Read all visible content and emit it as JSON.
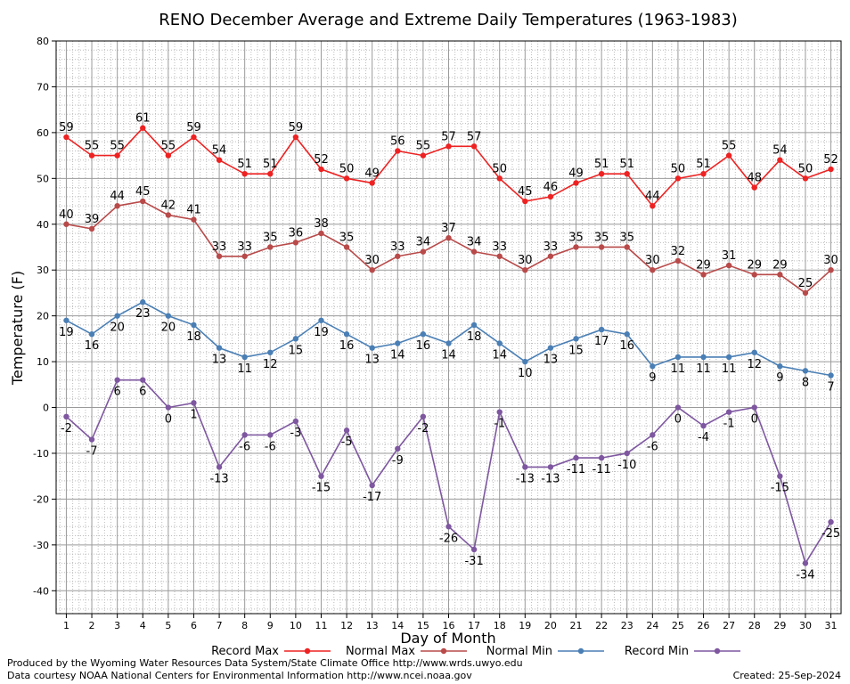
{
  "chart_data": {
    "type": "line",
    "title": "RENO December Average and Extreme Daily Temperatures (1963-1983)",
    "xlabel": "Day of Month",
    "ylabel": "Temperature (F)",
    "x": [
      1,
      2,
      3,
      4,
      5,
      6,
      7,
      8,
      9,
      10,
      11,
      12,
      13,
      14,
      15,
      16,
      17,
      18,
      19,
      20,
      21,
      22,
      23,
      24,
      25,
      26,
      27,
      28,
      29,
      30,
      31
    ],
    "xlim": [
      0.6,
      31.4
    ],
    "ylim": [
      -45,
      80
    ],
    "yticks": [
      -40,
      -30,
      -20,
      -10,
      0,
      10,
      20,
      30,
      40,
      50,
      60,
      70,
      80
    ],
    "grid": true,
    "legend_placement": "bottom",
    "series": [
      {
        "name": "Record Max",
        "color": "#ee2222",
        "label_pos": "above",
        "values": [
          59,
          55,
          55,
          61,
          55,
          59,
          54,
          51,
          51,
          59,
          52,
          50,
          49,
          56,
          55,
          57,
          57,
          50,
          45,
          46,
          49,
          51,
          51,
          44,
          50,
          51,
          55,
          48,
          54,
          50,
          52
        ]
      },
      {
        "name": "Normal Max",
        "color": "#b94a4a",
        "label_pos": "above",
        "values": [
          40,
          39,
          44,
          45,
          42,
          41,
          33,
          33,
          35,
          36,
          38,
          35,
          30,
          33,
          34,
          37,
          34,
          33,
          30,
          33,
          35,
          35,
          35,
          30,
          32,
          29,
          31,
          29,
          29,
          25,
          30
        ]
      },
      {
        "name": "Normal Min",
        "color": "#4a7fb5",
        "label_pos": "below",
        "values": [
          19,
          16,
          20,
          23,
          20,
          18,
          13,
          11,
          12,
          15,
          19,
          16,
          13,
          14,
          16,
          14,
          18,
          14,
          10,
          13,
          15,
          17,
          16,
          9,
          11,
          11,
          11,
          12,
          9,
          8,
          7
        ]
      },
      {
        "name": "Record Min",
        "color": "#7e57a0",
        "label_pos": "below",
        "values": [
          -2,
          -7,
          6,
          6,
          0,
          1,
          -13,
          -6,
          -6,
          -3,
          -15,
          -5,
          -17,
          -9,
          -2,
          -26,
          -31,
          -1,
          -13,
          -13,
          -11,
          -11,
          -10,
          -6,
          0,
          -4,
          -1,
          0,
          -15,
          -34,
          -25
        ]
      }
    ]
  },
  "footer": {
    "produced_by": "Produced by the Wyoming Water Resources Data System/State Climate Office http://www.wrds.uwyo.edu",
    "courtesy": "Data courtesy NOAA National Centers for Environmental Information http://www.ncei.noaa.gov",
    "created": "Created: 25-Sep-2024"
  }
}
